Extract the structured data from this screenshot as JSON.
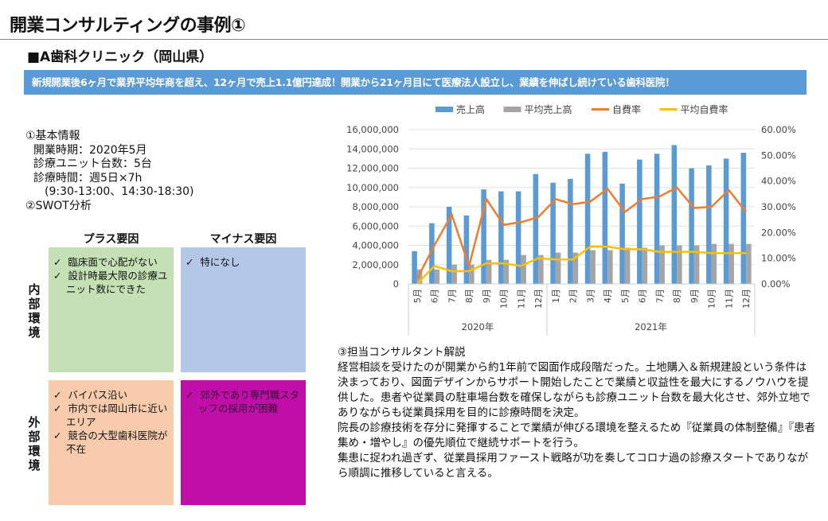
{
  "title": "開業コンサルティングの事例①",
  "subtitle": "■A歯科クリニック（岡山県）",
  "banner": "新規開業後6ヶ月で業界平均年商を超え、12ヶ月で売上1.1億円達成！開業から21ヶ月目にて医療法人設立し、業績を伸ばし続けている歯科医院！",
  "info": {
    "heading": "①基本情報",
    "lines": [
      "開業時期：2020年5月",
      "診療ユニット台数：5台",
      "診療時間：週5日×7h",
      "　(9:30-13:00、14:30-18:30)"
    ],
    "swot_heading": "②SWOT分析"
  },
  "swot": {
    "col_plus": "プラス要因",
    "col_minus": "マイナス要因",
    "row_internal": "内部環境",
    "row_external": "外部環境",
    "internal_plus": [
      "臨床面で心配がない",
      "設計時最大限の診療ユニット数にできた"
    ],
    "internal_minus": [
      "特になし"
    ],
    "external_plus": [
      "バイパス沿い",
      "市内では岡山市に近いエリア",
      "競合の大型歯科医院が不在"
    ],
    "external_minus": [
      "郊外であり専門職スタッフの採用が困難"
    ],
    "check": "✓",
    "colors": {
      "internal_plus": "#c5e0b4",
      "internal_minus": "#b4c7e7",
      "external_plus": "#f8cbad",
      "external_minus": "#c00fa8"
    }
  },
  "comment": {
    "heading": "③担当コンサルタント解説",
    "paragraphs": [
      "経営相談を受けたのが開業から約1年前で図面作成段階だった。土地購入＆新規建設という条件は決まっており、図面デザインからサポート開始したことで業績と収益性を最大にするノウハウを提供した。患者や従業員の駐車場台数を確保しながらも診療ユニット台数を最大化させ、郊外立地でありながらも従業員採用を目的に診療時間を決定。",
      "院長の診療技術を存分に発揮することで業績が伸びる環境を整えるため『従業員の体制整備』『患者集め・増やし』の優先順位で継続サポートを行う。",
      "集患に捉われ過ぎず、従業員採用ファースト戦略が功を奏してコロナ過の診療スタートでありながら順調に推移していると言える。"
    ]
  },
  "chart_data": {
    "type": "bar",
    "categories": [
      "5月",
      "6月",
      "7月",
      "8月",
      "9月",
      "10月",
      "11月",
      "12月",
      "1月",
      "2月",
      "3月",
      "4月",
      "5月",
      "6月",
      "7月",
      "8月",
      "9月",
      "10月",
      "11月",
      "12月"
    ],
    "groups": [
      {
        "label": "2020年",
        "count": 8
      },
      {
        "label": "2021年",
        "count": 12
      }
    ],
    "ylim": [
      0,
      16000000
    ],
    "yticks": [
      "0",
      "2,000,000",
      "4,000,000",
      "6,000,000",
      "8,000,000",
      "10,000,000",
      "12,000,000",
      "14,000,000",
      "16,000,000"
    ],
    "y2lim": [
      0,
      60
    ],
    "y2ticks": [
      "0.00%",
      "10.00%",
      "20.00%",
      "30.00%",
      "40.00%",
      "50.00%",
      "60.00%"
    ],
    "grid": true,
    "legend_position": "top",
    "series": [
      {
        "name": "売上高",
        "kind": "bar",
        "axis": "left",
        "color": "#5b9bd5",
        "values": [
          3400000,
          6300000,
          8000000,
          7100000,
          9800000,
          9600000,
          9600000,
          11400000,
          10500000,
          10900000,
          13500000,
          13700000,
          10400000,
          12900000,
          13500000,
          14400000,
          12000000,
          12300000,
          13000000,
          13600000
        ]
      },
      {
        "name": "平均売上高",
        "kind": "bar",
        "axis": "left",
        "color": "#a5a5a5",
        "values": [
          1500000,
          1500000,
          2000000,
          2000000,
          2500000,
          2500000,
          3000000,
          3000000,
          3250000,
          3250000,
          3500000,
          3500000,
          3750000,
          3750000,
          4000000,
          4000000,
          4000000,
          4150000,
          4150000,
          4150000
        ]
      },
      {
        "name": "自費率",
        "kind": "line",
        "axis": "right",
        "color": "#ed7d31",
        "values": [
          2,
          15,
          27,
          7,
          33,
          23,
          24,
          26,
          33,
          31,
          32,
          37,
          28,
          33,
          34,
          37.5,
          29.5,
          30,
          36.5,
          28
        ]
      },
      {
        "name": "平均自費率",
        "kind": "line",
        "axis": "right",
        "color": "#ffc000",
        "values": [
          0,
          7,
          5,
          5,
          8,
          8,
          7,
          10,
          9.5,
          9.5,
          14.5,
          14.5,
          13.5,
          13.5,
          12.5,
          12.5,
          12.5,
          12,
          12,
          12
        ]
      }
    ]
  }
}
